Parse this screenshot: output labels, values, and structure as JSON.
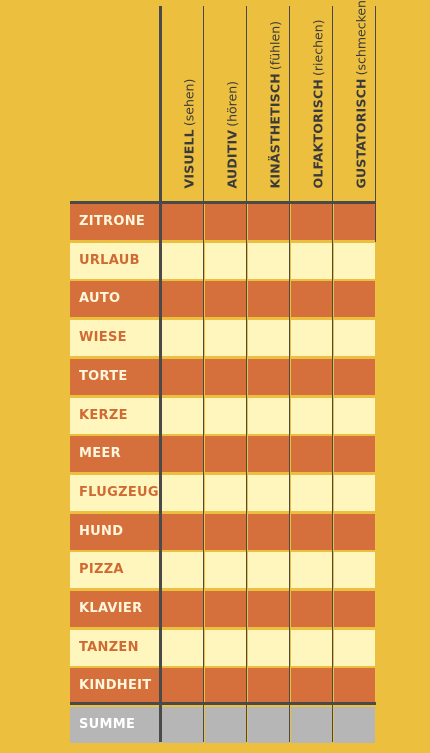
{
  "columns": [
    {
      "main": "VISUELL",
      "sub": "(sehen)"
    },
    {
      "main": "AUDITIV",
      "sub": "(hören)"
    },
    {
      "main": "KINÄSTHETISCH",
      "sub": "(fühlen)"
    },
    {
      "main": "OLFAKTORISCH",
      "sub": "(riechen)"
    },
    {
      "main": "GUSTATORISCH",
      "sub": "(schmecken)"
    }
  ],
  "rows": [
    {
      "label": "ZITRONE",
      "style": "orange"
    },
    {
      "label": "URLAUB",
      "style": "cream"
    },
    {
      "label": "AUTO",
      "style": "orange"
    },
    {
      "label": "WIESE",
      "style": "cream"
    },
    {
      "label": "TORTE",
      "style": "orange"
    },
    {
      "label": "KERZE",
      "style": "cream"
    },
    {
      "label": "MEER",
      "style": "orange"
    },
    {
      "label": "FLUGZEUG",
      "style": "cream"
    },
    {
      "label": "HUND",
      "style": "orange"
    },
    {
      "label": "PIZZA",
      "style": "cream"
    },
    {
      "label": "KLAVIER",
      "style": "orange"
    },
    {
      "label": "TANZEN",
      "style": "cream"
    },
    {
      "label": "KINDHEIT",
      "style": "orange"
    }
  ],
  "summary": {
    "label": "SUMME"
  },
  "colors": {
    "background": "#EDBF3F",
    "orange": "#D5703C",
    "cream": "#FFF6BE",
    "summary": "#B6B6B6",
    "lines": "#4A4A4A"
  }
}
